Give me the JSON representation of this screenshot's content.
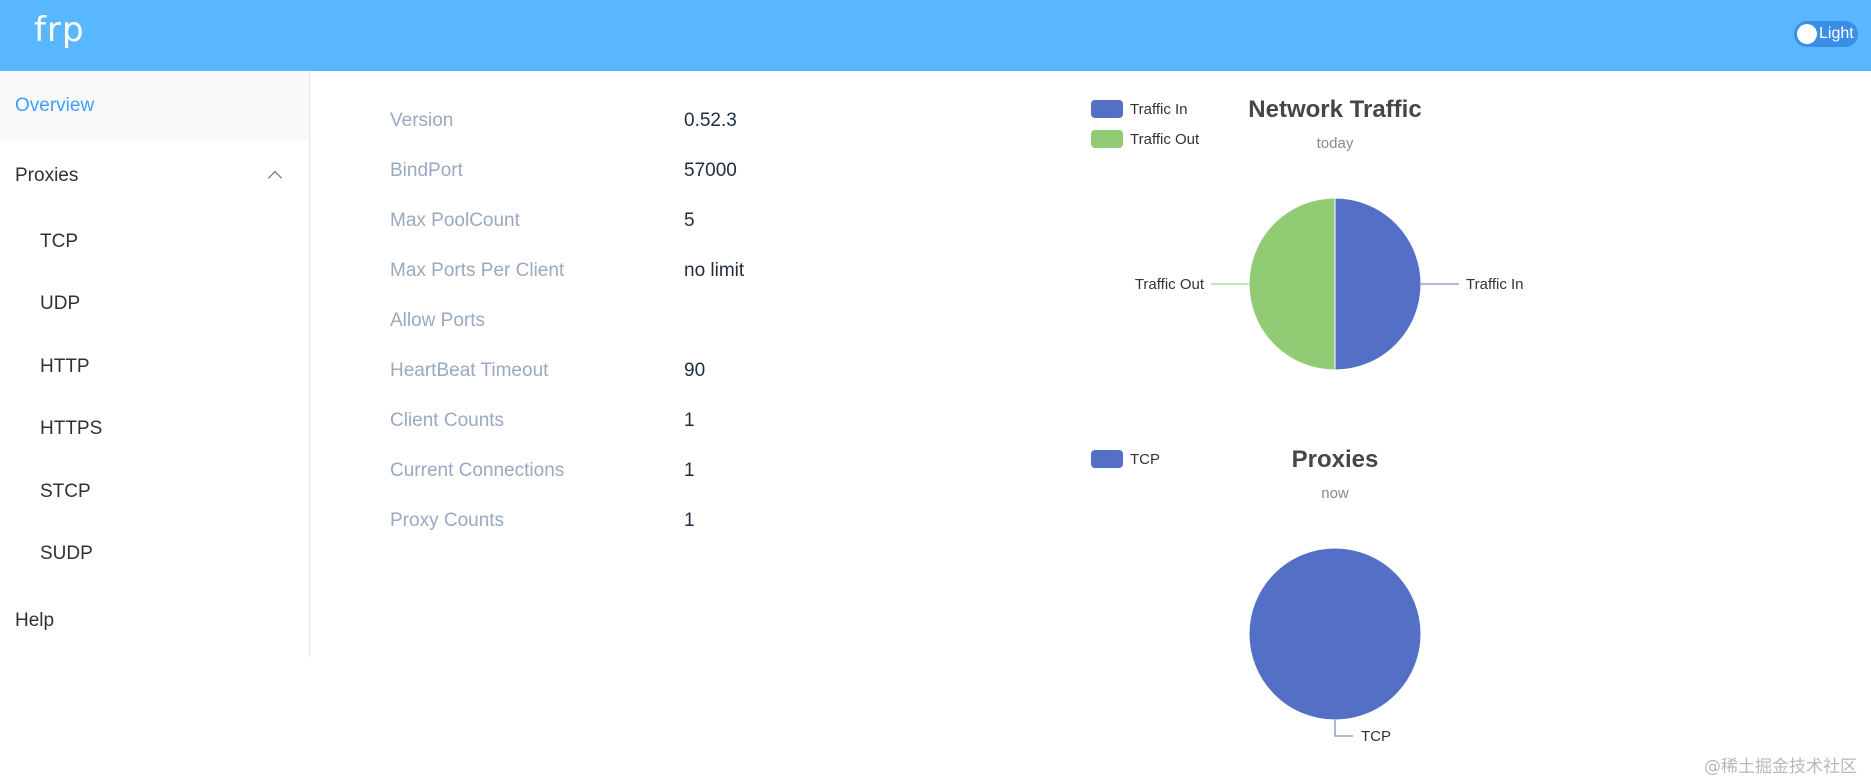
{
  "header": {
    "brand": "frp",
    "theme_label": "Light"
  },
  "sidebar": {
    "overview": "Overview",
    "proxies": "Proxies",
    "proxy_types": [
      "TCP",
      "UDP",
      "HTTP",
      "HTTPS",
      "STCP",
      "SUDP"
    ],
    "help": "Help"
  },
  "server_info": [
    {
      "label": "Version",
      "value": "0.52.3"
    },
    {
      "label": "BindPort",
      "value": "57000"
    },
    {
      "label": "Max PoolCount",
      "value": "5"
    },
    {
      "label": "Max Ports Per Client",
      "value": "no limit"
    },
    {
      "label": "Allow Ports",
      "value": ""
    },
    {
      "label": "HeartBeat Timeout",
      "value": "90"
    },
    {
      "label": "Client Counts",
      "value": "1"
    },
    {
      "label": "Current Connections",
      "value": "1"
    },
    {
      "label": "Proxy Counts",
      "value": "1"
    }
  ],
  "colors": {
    "header": "#58b7ff",
    "active": "#409eff",
    "traffic_in": "#5470c6",
    "traffic_out": "#91cc75"
  },
  "chart_data": [
    {
      "type": "pie",
      "title": "Network Traffic",
      "subtitle": "today",
      "legend_position": "top-left",
      "slices": [
        {
          "name": "Traffic In",
          "value": 50,
          "color": "#5470c6"
        },
        {
          "name": "Traffic Out",
          "value": 50,
          "color": "#91cc75"
        }
      ]
    },
    {
      "type": "pie",
      "title": "Proxies",
      "subtitle": "now",
      "legend_position": "top-left",
      "slices": [
        {
          "name": "TCP",
          "value": 1,
          "color": "#5470c6"
        }
      ]
    }
  ],
  "watermark": "@稀土掘金技术社区"
}
